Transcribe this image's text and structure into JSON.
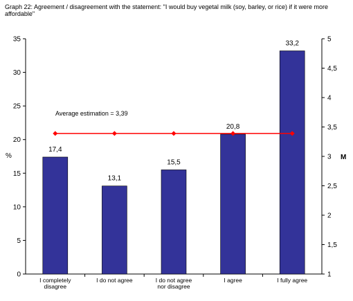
{
  "chart_data": {
    "type": "bar",
    "title": "Graph 22: Agreement / disagreement with the statement: \"I would buy vegetal milk (soy, barley, or rice) if it were more affordable\"",
    "categories": [
      [
        "I completely",
        "disagree"
      ],
      [
        "I do not agree"
      ],
      [
        "I do not agree",
        "nor disagree"
      ],
      [
        "I agree"
      ],
      [
        "I fully agree"
      ]
    ],
    "series": [
      {
        "values": [
          17.4,
          13.1,
          15.5,
          20.8,
          33.2
        ],
        "labels": [
          "17,4",
          "13,1",
          "15,5",
          "20,8",
          "33,2"
        ],
        "color": "#333399",
        "axis": "left"
      }
    ],
    "line": {
      "value": 3.39,
      "color": "#ff0000",
      "marker": "diamond",
      "axis": "right"
    },
    "annotation": "Average estimation = 3,39",
    "ylabel": "%",
    "y2label": "M",
    "ylim": [
      0,
      35
    ],
    "yticks": [
      "0",
      "5",
      "10",
      "15",
      "20",
      "25",
      "30",
      "35"
    ],
    "y2lim": [
      1,
      5
    ],
    "y2ticks": [
      "1",
      "1,5",
      "2",
      "2,5",
      "3",
      "3,5",
      "4",
      "4,5",
      "5"
    ],
    "grid": false,
    "legend": "none"
  }
}
